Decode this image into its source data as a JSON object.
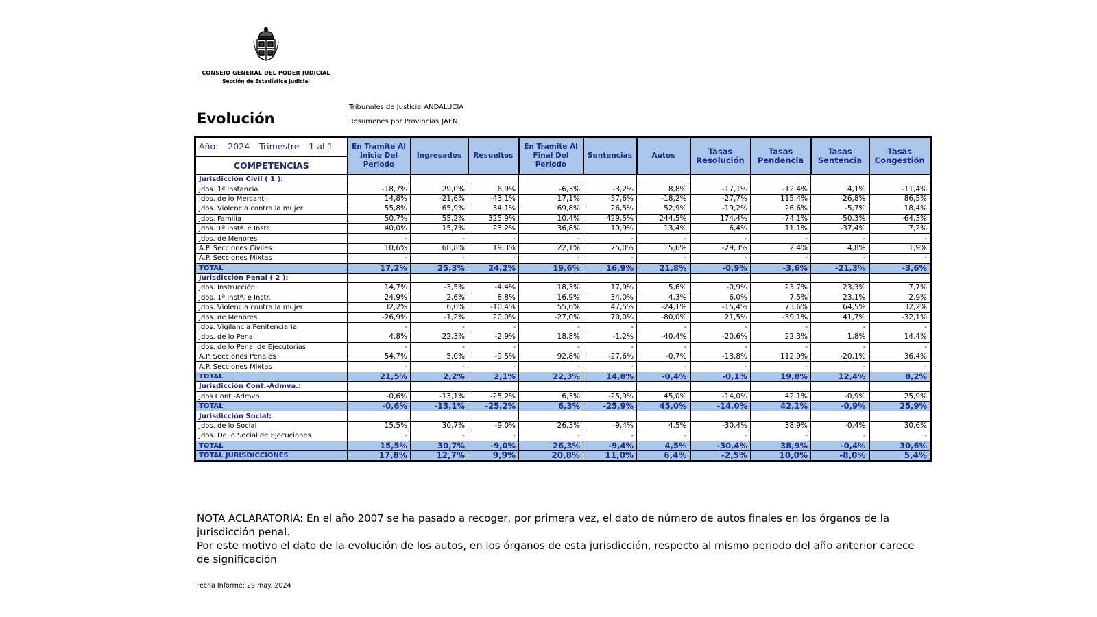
{
  "header": {
    "org_name": "CONSEJO GENERAL DEL PODER JUDICIAL",
    "org_sub": "Sección de Estadística Judicial",
    "title": "Evolución",
    "tribunales_label": "Tribunales de Justicia",
    "tribunales_value": "ANDALUCIA",
    "resumenes_label": "Resumenes por Provincias",
    "resumenes_value": "JAEN"
  },
  "period": {
    "year_label": "Año:",
    "year": "2024",
    "trimestre_label": "Trimestre",
    "trimestre": "1 al 1",
    "competencias_label": "COMPETENCIAS"
  },
  "columns": [
    "En Tramite Al Inicio Del Periodo",
    "Ingresados",
    "Resueltos",
    "En Tramite Al Final Del Periodo",
    "Sentencias",
    "Autos",
    "Tasas Resolución",
    "Tasas Pendencia",
    "Tasas Sentencia",
    "Tasas Congestión"
  ],
  "sections": [
    {
      "title": "Jurisdicción Civil ( 1 ):",
      "rows": [
        {
          "label": "Jdos. 1ª Instancia",
          "values": [
            "-18,7%",
            "29,0%",
            "6,9%",
            "-6,3%",
            "-3,2%",
            "8,8%",
            "-17,1%",
            "-12,4%",
            "4,1%",
            "-11,4%"
          ]
        },
        {
          "label": "Jdos. de lo Mercantil",
          "values": [
            "14,8%",
            "-21,6%",
            "-43,1%",
            "17,1%",
            "-57,6%",
            "-18,2%",
            "-27,7%",
            "115,4%",
            "-26,8%",
            "86,5%"
          ]
        },
        {
          "label": "Jdos. Violencia contra la mujer",
          "values": [
            "55,8%",
            "65,9%",
            "34,1%",
            "69,8%",
            "26,5%",
            "52,9%",
            "-19,2%",
            "26,6%",
            "-5,7%",
            "18,4%"
          ]
        },
        {
          "label": "Jdos. Familia",
          "values": [
            "50,7%",
            "55,2%",
            "325,9%",
            "10,4%",
            "429,5%",
            "244,5%",
            "174,4%",
            "-74,1%",
            "-50,3%",
            "-64,3%"
          ]
        },
        {
          "label": "Jdos. 1ª Instª. e Instr.",
          "values": [
            "40,0%",
            "15,7%",
            "23,2%",
            "36,8%",
            "19,9%",
            "13,4%",
            "6,4%",
            "11,1%",
            "-37,4%",
            "7,2%"
          ]
        },
        {
          "label": "Jdos. de Menores",
          "values": [
            "-",
            "-",
            "-",
            "-",
            "-",
            "-",
            "-",
            "-",
            "-",
            "-"
          ]
        },
        {
          "label": "A.P. Secciones Civiles",
          "values": [
            "10,6%",
            "68,8%",
            "19,3%",
            "22,1%",
            "25,0%",
            "15,6%",
            "-29,3%",
            "2,4%",
            "4,8%",
            "1,9%"
          ]
        },
        {
          "label": "A.P. Secciones Mixtas",
          "values": [
            "-",
            "-",
            "-",
            "-",
            "-",
            "-",
            "-",
            "-",
            "-",
            "-"
          ]
        }
      ],
      "total": {
        "label": "TOTAL",
        "values": [
          "17,2%",
          "25,3%",
          "24,2%",
          "19,6%",
          "16,9%",
          "21,8%",
          "-0,9%",
          "-3,6%",
          "-21,3%",
          "-3,6%"
        ]
      }
    },
    {
      "title": "Jurisdicción Penal ( 2 ):",
      "rows": [
        {
          "label": "Jdos. Instrucción",
          "values": [
            "14,7%",
            "-3,5%",
            "-4,4%",
            "18,3%",
            "17,9%",
            "5,6%",
            "-0,9%",
            "23,7%",
            "23,3%",
            "7,7%"
          ]
        },
        {
          "label": "Jdos. 1ª Instª. e Instr.",
          "values": [
            "24,9%",
            "2,6%",
            "8,8%",
            "16,9%",
            "34,0%",
            "4,3%",
            "6,0%",
            "7,5%",
            "23,1%",
            "2,9%"
          ]
        },
        {
          "label": "Jdos. Violencia contra la mujer",
          "values": [
            "32,2%",
            "6,0%",
            "-10,4%",
            "55,6%",
            "47,5%",
            "-24,1%",
            "-15,4%",
            "73,6%",
            "64,5%",
            "32,2%"
          ]
        },
        {
          "label": "Jdos. de Menores",
          "values": [
            "-26,9%",
            "-1,2%",
            "20,0%",
            "-27,0%",
            "70,0%",
            "-80,0%",
            "21,5%",
            "-39,1%",
            "41,7%",
            "-32,1%"
          ]
        },
        {
          "label": "Jdos. Vigilancia Penitenciaria",
          "values": [
            "-",
            "-",
            "-",
            "-",
            "-",
            "-",
            "-",
            "-",
            "-",
            "-"
          ]
        },
        {
          "label": "Jdos. de lo Penal",
          "values": [
            "4,8%",
            "22,3%",
            "-2,9%",
            "18,8%",
            "-1,2%",
            "-40,4%",
            "-20,6%",
            "22,3%",
            "1,8%",
            "14,4%"
          ]
        },
        {
          "label": "Jdos. de lo Penal de Ejecutorias",
          "values": [
            "-",
            "-",
            "-",
            "-",
            "-",
            "-",
            "-",
            "-",
            "-",
            "-"
          ]
        },
        {
          "label": "A.P. Secciones Penales",
          "values": [
            "54,7%",
            "5,0%",
            "-9,5%",
            "92,8%",
            "-27,6%",
            "-0,7%",
            "-13,8%",
            "112,9%",
            "-20,1%",
            "36,4%"
          ]
        },
        {
          "label": "A.P. Secciones Mixtas",
          "values": [
            "-",
            "-",
            "-",
            "-",
            "-",
            "-",
            "-",
            "-",
            "-",
            "-"
          ]
        }
      ],
      "total": {
        "label": "TOTAL",
        "values": [
          "21,5%",
          "2,2%",
          "2,1%",
          "22,3%",
          "14,8%",
          "-0,4%",
          "-0,1%",
          "19,8%",
          "12,4%",
          "8,2%"
        ]
      }
    },
    {
      "title": "Jurisdicción Cont.-Admva.:",
      "rows": [
        {
          "label": "Jdos Cont.-Admvo.",
          "values": [
            "-0,6%",
            "-13,1%",
            "-25,2%",
            "6,3%",
            "-25,9%",
            "45,0%",
            "-14,0%",
            "42,1%",
            "-0,9%",
            "25,9%"
          ]
        }
      ],
      "total": {
        "label": "TOTAL",
        "values": [
          "-0,6%",
          "-13,1%",
          "-25,2%",
          "6,3%",
          "-25,9%",
          "45,0%",
          "-14,0%",
          "42,1%",
          "-0,9%",
          "25,9%"
        ]
      }
    },
    {
      "title": "Jurisdicción Social:",
      "rows": [
        {
          "label": "Jdos. de lo Social",
          "values": [
            "15,5%",
            "30,7%",
            "-9,0%",
            "26,3%",
            "-9,4%",
            "4,5%",
            "-30,4%",
            "38,9%",
            "-0,4%",
            "30,6%"
          ]
        },
        {
          "label": "Jdos. De lo Social de Ejecuciones",
          "values": [
            "-",
            "-",
            "-",
            "-",
            "-",
            "-",
            "-",
            "-",
            "-",
            "-"
          ]
        }
      ],
      "total": {
        "label": "TOTAL",
        "values": [
          "15,5%",
          "30,7%",
          "-9,0%",
          "26,3%",
          "-9,4%",
          "4,5%",
          "-30,4%",
          "38,9%",
          "-0,4%",
          "30,6%"
        ]
      }
    }
  ],
  "grand_total": {
    "label": "TOTAL JURISDICCIONES",
    "values": [
      "17,8%",
      "12,7%",
      "9,9%",
      "20,8%",
      "11,0%",
      "6,4%",
      "-2,5%",
      "10,0%",
      "-8,0%",
      "5,4%"
    ]
  },
  "note": {
    "line1": "NOTA ACLARATORIA: En el año 2007 se ha pasado a recoger, por primera vez, el dato de número de autos finales en los órganos de la jurisdicción penal.",
    "line2": "Por este motivo el dato de la evolución de los autos, en los órganos de esta jurisdicción,  respecto al mismo periodo del año anterior carece de significación"
  },
  "footer": {
    "fecha_label": "Fecha Informe:",
    "fecha": "29 may. 2024"
  }
}
